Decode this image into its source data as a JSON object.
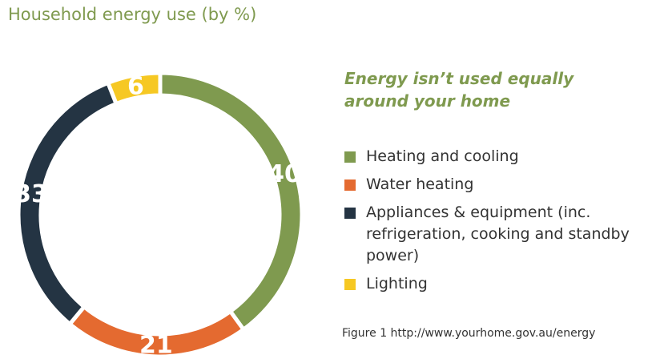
{
  "chart_data": {
    "type": "donut",
    "title": "Household energy use (by %)",
    "subtitle": "Energy isn’t used equally around your home",
    "categories": [
      "Heating and cooling",
      "Water heating",
      "Appliances & equipment (inc. refrigeration, cooking and standby power)",
      "Lighting"
    ],
    "values": [
      40,
      21,
      33,
      6
    ],
    "colors": [
      "#7f9a4f",
      "#e46a30",
      "#243443",
      "#f6c823"
    ],
    "footnote": "Figure 1 http://www.yourhome.gov.au/energy"
  }
}
